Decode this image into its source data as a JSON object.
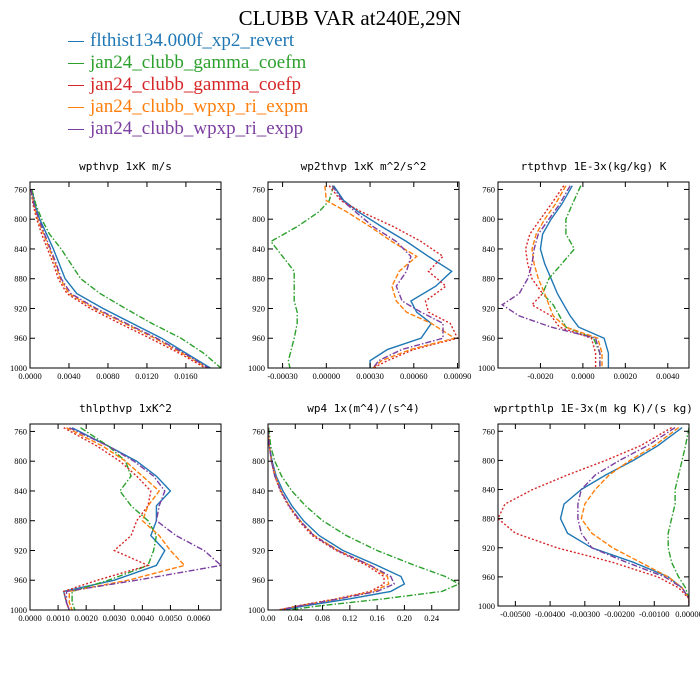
{
  "figure": {
    "title": "CLUBB VAR at240E,29N"
  },
  "colors": {
    "blue": "#1f77b4",
    "green": "#2ca02c",
    "red": "#d62728",
    "orange": "#ff7f0e",
    "purple": "#7b3fa0"
  },
  "legend": [
    {
      "name": "flthist134.000f_xp2_revert",
      "color": "#1f77b4",
      "style": "solid"
    },
    {
      "name": "jan24_clubb_gamma_coefm",
      "color": "#2ca02c",
      "style": "dashdot"
    },
    {
      "name": "jan24_clubb_gamma_coefp",
      "color": "#d62728",
      "style": "dotted"
    },
    {
      "name": "jan24_clubb_wpxp_ri_expm",
      "color": "#ff7f0e",
      "style": "dashed"
    },
    {
      "name": "jan24_clubb_wpxp_ri_expp",
      "color": "#7b3fa0",
      "style": "dashdot"
    }
  ],
  "chart_data": [
    {
      "type": "line",
      "title": "wpthvp  1xK m/s",
      "xlim": [
        0.0,
        0.0196
      ],
      "ylim": [
        750,
        1000
      ],
      "x_ticks": [
        0.0,
        0.004,
        0.008,
        0.012,
        0.016
      ],
      "x_tick_labels": [
        "0.0000",
        "0.0040",
        "0.0080",
        "0.0120",
        "0.0160"
      ],
      "y_ticks": [
        760,
        800,
        840,
        880,
        920,
        960,
        1000
      ],
      "y_tick_labels": [
        "760",
        "800",
        "840",
        "880",
        "920",
        "960",
        "1000"
      ],
      "y": [
        760,
        780,
        800,
        820,
        840,
        860,
        880,
        900,
        920,
        940,
        960,
        980,
        1000
      ],
      "series": [
        {
          "color": "blue",
          "values": [
            0.0002,
            0.0005,
            0.001,
            0.0017,
            0.0024,
            0.003,
            0.0036,
            0.0048,
            0.0075,
            0.0105,
            0.0135,
            0.016,
            0.0185
          ]
        },
        {
          "color": "green",
          "values": [
            0.0002,
            0.0006,
            0.0012,
            0.002,
            0.0032,
            0.0042,
            0.0052,
            0.0072,
            0.0098,
            0.0125,
            0.0155,
            0.0178,
            0.0196
          ]
        },
        {
          "color": "red",
          "values": [
            0.0001,
            0.0003,
            0.0007,
            0.0012,
            0.0018,
            0.0024,
            0.0029,
            0.0038,
            0.0062,
            0.0092,
            0.0123,
            0.0153,
            0.018
          ]
        },
        {
          "color": "orange",
          "values": [
            0.0001,
            0.0004,
            0.0008,
            0.0014,
            0.002,
            0.0026,
            0.0031,
            0.004,
            0.0066,
            0.0097,
            0.0128,
            0.0156,
            0.0182
          ]
        },
        {
          "color": "purple",
          "values": [
            0.0001,
            0.0004,
            0.0009,
            0.0015,
            0.0021,
            0.0027,
            0.0032,
            0.0042,
            0.0068,
            0.0099,
            0.013,
            0.0158,
            0.0183
          ]
        }
      ]
    },
    {
      "type": "line",
      "title": "wp2thvp  1xK m^2/s^2",
      "xlim": [
        -0.0004,
        0.00091
      ],
      "ylim": [
        750,
        1000
      ],
      "x_ticks": [
        -0.0003,
        0.0,
        0.0003,
        0.0006,
        0.0009
      ],
      "x_tick_labels": [
        "-0.00030",
        "0.00000",
        "0.00030",
        "0.00060",
        "0.00090"
      ],
      "y_ticks": [
        760,
        800,
        840,
        880,
        920,
        960,
        1000
      ],
      "y_tick_labels": [
        "760",
        "800",
        "840",
        "880",
        "920",
        "960",
        "1000"
      ],
      "y": [
        755,
        775,
        790,
        810,
        830,
        850,
        870,
        890,
        910,
        925,
        940,
        960,
        975,
        990,
        1000
      ],
      "series": [
        {
          "color": "blue",
          "values": [
            5e-05,
            0.00012,
            0.00022,
            0.00038,
            0.00055,
            0.0007,
            0.00086,
            0.00075,
            0.00058,
            0.00062,
            0.00072,
            0.00065,
            0.00042,
            0.0003,
            0.0003
          ]
        },
        {
          "color": "green",
          "values": [
            5e-05,
            2e-05,
            -5e-05,
            -0.0002,
            -0.00038,
            -0.0003,
            -0.00022,
            -0.00022,
            -0.00022,
            -0.0002,
            -0.0002,
            -0.00022,
            -0.00024,
            -0.00026,
            -0.00025
          ]
        },
        {
          "color": "red",
          "values": [
            2e-05,
            0.0001,
            0.00024,
            0.00046,
            0.00065,
            0.0008,
            0.0007,
            0.00082,
            0.00068,
            0.0007,
            0.00085,
            0.0009,
            0.0006,
            0.00042,
            0.00032
          ]
        },
        {
          "color": "orange",
          "values": [
            -1e-05,
            0.0,
            0.00014,
            0.0003,
            0.00045,
            0.00062,
            0.0005,
            0.00045,
            0.00048,
            0.00055,
            0.00072,
            0.00088,
            0.00058,
            0.00038,
            0.00032
          ]
        },
        {
          "color": "purple",
          "values": [
            4e-05,
            0.00011,
            0.0002,
            0.00032,
            0.00048,
            0.00058,
            0.00055,
            0.00048,
            0.00052,
            0.00065,
            0.0008,
            0.0008,
            0.00052,
            0.00036,
            0.00032
          ]
        }
      ]
    },
    {
      "type": "line",
      "title": "rtpthvp  1E-3x(kg/kg) K",
      "xlim": [
        -0.004,
        0.005
      ],
      "ylim": [
        750,
        1000
      ],
      "x_ticks": [
        -0.002,
        0.0,
        0.002,
        0.004
      ],
      "x_tick_labels": [
        "-0.0020",
        "0.0000",
        "0.0020",
        "0.0040"
      ],
      "y_ticks": [
        760,
        800,
        840,
        880,
        920,
        960,
        1000
      ],
      "y_tick_labels": [
        "760",
        "800",
        "840",
        "880",
        "920",
        "960",
        "1000"
      ],
      "y": [
        755,
        780,
        800,
        820,
        840,
        860,
        880,
        900,
        915,
        930,
        945,
        960,
        980,
        1000
      ],
      "series": [
        {
          "color": "blue",
          "values": [
            -0.0005,
            -0.001,
            -0.0015,
            -0.0019,
            -0.002,
            -0.0018,
            -0.0015,
            -0.0012,
            -0.0009,
            -0.0006,
            -0.0002,
            0.001,
            0.0012,
            0.0012
          ]
        },
        {
          "color": "green",
          "values": [
            -0.0001,
            -0.0005,
            -0.0008,
            -0.0008,
            -0.0004,
            -0.001,
            -0.0016,
            -0.0019,
            -0.0014,
            -0.0011,
            -0.0008,
            0.0005,
            0.0008,
            0.0008
          ]
        },
        {
          "color": "red",
          "values": [
            -0.0009,
            -0.0015,
            -0.002,
            -0.0025,
            -0.0027,
            -0.0026,
            -0.0024,
            -0.0019,
            -0.0024,
            -0.0015,
            -0.0011,
            0.0004,
            0.0006,
            0.0006
          ]
        },
        {
          "color": "orange",
          "values": [
            -0.0008,
            -0.0013,
            -0.0018,
            -0.0022,
            -0.0024,
            -0.0023,
            -0.0021,
            -0.0018,
            -0.0016,
            -0.0014,
            -0.0008,
            0.0007,
            0.0009,
            0.0009
          ]
        },
        {
          "color": "purple",
          "values": [
            -0.0006,
            -0.0011,
            -0.0016,
            -0.0021,
            -0.0023,
            -0.0024,
            -0.0026,
            -0.003,
            -0.0038,
            -0.003,
            -0.0015,
            0.0006,
            0.0008,
            0.0008
          ]
        }
      ]
    },
    {
      "type": "line",
      "title": "thlpthvp  1xK^2",
      "xlim": [
        0.0,
        0.0068
      ],
      "ylim": [
        750,
        1000
      ],
      "x_ticks": [
        0.0,
        0.001,
        0.002,
        0.003,
        0.004,
        0.005,
        0.006
      ],
      "x_tick_labels": [
        "0.0000",
        "0.0010",
        "0.0020",
        "0.0030",
        "0.0040",
        "0.0050",
        "0.0060"
      ],
      "y_ticks": [
        760,
        800,
        840,
        880,
        920,
        960,
        1000
      ],
      "y_tick_labels": [
        "760",
        "800",
        "840",
        "880",
        "920",
        "960",
        "1000"
      ],
      "y": [
        755,
        780,
        800,
        820,
        840,
        860,
        880,
        900,
        920,
        940,
        960,
        975,
        990,
        1000
      ],
      "series": [
        {
          "color": "blue",
          "values": [
            0.0015,
            0.0028,
            0.0038,
            0.0045,
            0.005,
            0.0045,
            0.0045,
            0.0043,
            0.0048,
            0.0045,
            0.003,
            0.0012,
            0.0013,
            0.0014
          ]
        },
        {
          "color": "green",
          "values": [
            0.0018,
            0.0028,
            0.0034,
            0.0036,
            0.0032,
            0.0036,
            0.0042,
            0.0045,
            0.0044,
            0.0042,
            0.0028,
            0.0015,
            0.0015,
            0.0016
          ]
        },
        {
          "color": "red",
          "values": [
            0.0012,
            0.0024,
            0.0032,
            0.0038,
            0.0043,
            0.0042,
            0.0038,
            0.0036,
            0.003,
            0.0042,
            0.0024,
            0.0012,
            0.0013,
            0.0014
          ]
        },
        {
          "color": "orange",
          "values": [
            0.0013,
            0.0026,
            0.0034,
            0.004,
            0.0046,
            0.0042,
            0.004,
            0.0046,
            0.005,
            0.0055,
            0.0035,
            0.0014,
            0.0014,
            0.0015
          ]
        },
        {
          "color": "purple",
          "values": [
            0.0014,
            0.0028,
            0.0037,
            0.0044,
            0.0048,
            0.0046,
            0.0045,
            0.0052,
            0.0062,
            0.0068,
            0.0038,
            0.0013,
            0.0013,
            0.0014
          ]
        }
      ]
    },
    {
      "type": "line",
      "title": "wp4  1x(m^4)/(s^4)",
      "xlim": [
        0.0,
        0.28
      ],
      "ylim": [
        750,
        1000
      ],
      "x_ticks": [
        0.0,
        0.04,
        0.08,
        0.12,
        0.16,
        0.2,
        0.24
      ],
      "x_tick_labels": [
        "0.00",
        "0.04",
        "0.08",
        "0.12",
        "0.16",
        "0.20",
        "0.24"
      ],
      "y_ticks": [
        760,
        800,
        840,
        880,
        920,
        960,
        1000
      ],
      "y_tick_labels": [
        "760",
        "800",
        "840",
        "880",
        "920",
        "960",
        "1000"
      ],
      "y": [
        755,
        780,
        800,
        820,
        840,
        860,
        880,
        900,
        920,
        940,
        955,
        965,
        975,
        985,
        995,
        1000
      ],
      "series": [
        {
          "color": "blue",
          "values": [
            0.0,
            0.002,
            0.006,
            0.012,
            0.022,
            0.035,
            0.052,
            0.075,
            0.11,
            0.16,
            0.195,
            0.2,
            0.18,
            0.12,
            0.05,
            0.02
          ]
        },
        {
          "color": "green",
          "values": [
            0.001,
            0.004,
            0.01,
            0.02,
            0.035,
            0.055,
            0.08,
            0.115,
            0.16,
            0.215,
            0.26,
            0.28,
            0.255,
            0.17,
            0.07,
            0.03
          ]
        },
        {
          "color": "red",
          "values": [
            0.0,
            0.002,
            0.005,
            0.01,
            0.018,
            0.03,
            0.045,
            0.065,
            0.1,
            0.145,
            0.17,
            0.17,
            0.15,
            0.1,
            0.04,
            0.015
          ]
        },
        {
          "color": "orange",
          "values": [
            0.0,
            0.002,
            0.005,
            0.011,
            0.019,
            0.031,
            0.047,
            0.068,
            0.103,
            0.15,
            0.175,
            0.177,
            0.155,
            0.103,
            0.042,
            0.016
          ]
        },
        {
          "color": "purple",
          "values": [
            0.0,
            0.002,
            0.005,
            0.01,
            0.019,
            0.031,
            0.047,
            0.067,
            0.102,
            0.15,
            0.18,
            0.185,
            0.16,
            0.105,
            0.043,
            0.017
          ]
        }
      ]
    },
    {
      "type": "line",
      "title": "wprtpthlp  1E-3x(m kg K)/(s kg)",
      "xlim": [
        -0.0055,
        0.0
      ],
      "ylim": [
        750,
        1000
      ],
      "x_ticks": [
        -0.005,
        -0.004,
        -0.003,
        -0.002,
        -0.001,
        0.0
      ],
      "x_tick_labels": [
        "-0.00500",
        "-0.00400",
        "-0.00300",
        "-0.00200",
        "-0.00100",
        "0.00000"
      ],
      "y_ticks": [
        760,
        800,
        840,
        880,
        920,
        960,
        1000
      ],
      "y_tick_labels": [
        "760",
        "800",
        "840",
        "880",
        "920",
        "960",
        "1000"
      ],
      "y": [
        755,
        780,
        800,
        820,
        840,
        860,
        880,
        900,
        920,
        940,
        960,
        975,
        990,
        1000
      ],
      "series": [
        {
          "color": "blue",
          "values": [
            -0.0002,
            -0.0009,
            -0.0016,
            -0.0024,
            -0.0031,
            -0.0036,
            -0.0037,
            -0.0035,
            -0.0028,
            -0.0016,
            -0.0006,
            -0.0002,
            0.0,
            0.0
          ]
        },
        {
          "color": "green",
          "values": [
            0.0,
            -0.0001,
            -0.0002,
            -0.0003,
            -0.0004,
            -0.0004,
            -0.0005,
            -0.0006,
            -0.0006,
            -0.0005,
            -0.0003,
            -0.0001,
            0.0,
            0.0
          ]
        },
        {
          "color": "red",
          "values": [
            -0.0005,
            -0.0014,
            -0.0024,
            -0.0035,
            -0.0045,
            -0.0053,
            -0.0055,
            -0.005,
            -0.0038,
            -0.0022,
            -0.0009,
            -0.0003,
            0.0,
            0.0
          ]
        },
        {
          "color": "orange",
          "values": [
            -0.0003,
            -0.001,
            -0.0017,
            -0.0023,
            -0.0027,
            -0.003,
            -0.0031,
            -0.0028,
            -0.0022,
            -0.0014,
            -0.0006,
            -0.0002,
            0.0,
            0.0
          ]
        },
        {
          "color": "purple",
          "values": [
            -0.0004,
            -0.0012,
            -0.002,
            -0.0027,
            -0.0031,
            -0.0032,
            -0.0032,
            -0.0031,
            -0.0028,
            -0.0018,
            -0.0007,
            -0.0002,
            0.0,
            0.0
          ]
        }
      ]
    }
  ]
}
